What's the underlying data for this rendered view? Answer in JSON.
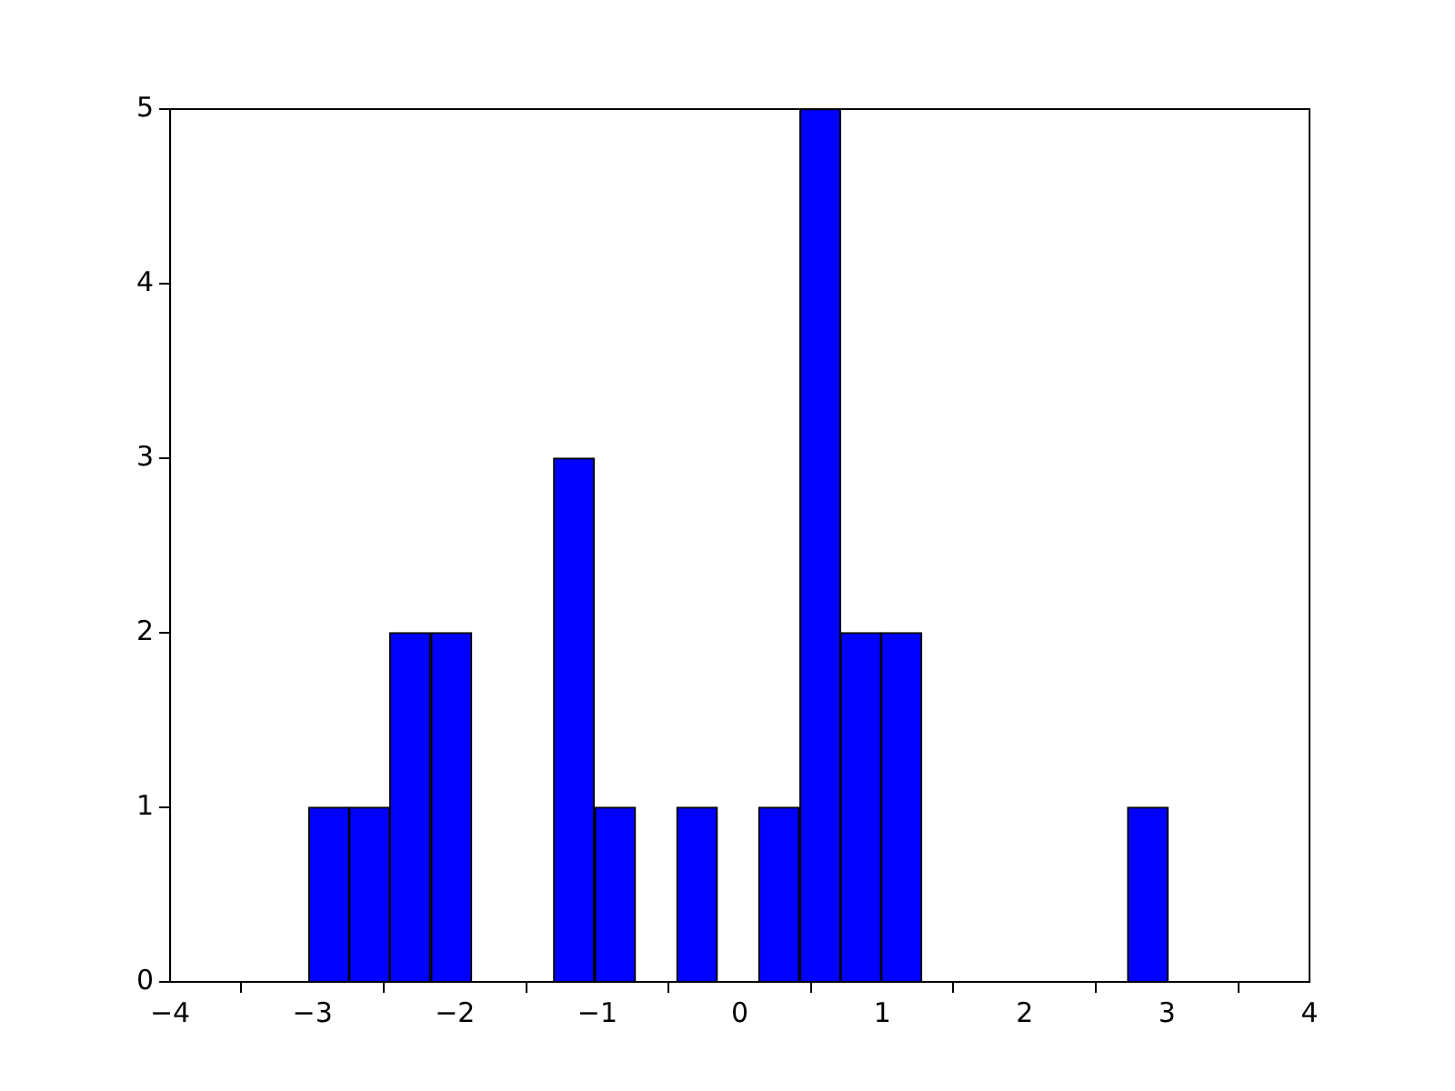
{
  "chart_data": {
    "type": "histogram",
    "bins": [
      -3.03,
      -2.74,
      -2.46,
      -2.17,
      -1.88,
      -1.59,
      -1.31,
      -1.02,
      -0.73,
      -0.44,
      -0.16,
      0.13,
      0.42,
      0.71,
      0.99,
      1.28,
      1.57,
      1.86,
      2.14,
      2.43,
      2.72,
      3.01
    ],
    "values": [
      1,
      1,
      2,
      2,
      0,
      0,
      3,
      1,
      0,
      1,
      0,
      1,
      5,
      2,
      2,
      0,
      0,
      0,
      0,
      0,
      1
    ],
    "color": "#0000ff",
    "xlim": [
      -4,
      4
    ],
    "xticks": [
      {
        "value": -4,
        "label": "−4"
      },
      {
        "value": -3,
        "label": "−3"
      },
      {
        "value": -2,
        "label": "−2"
      },
      {
        "value": -1,
        "label": "−1"
      },
      0,
      1,
      2,
      3,
      4
    ],
    "ylim": [
      0,
      5
    ],
    "yticks": [
      0,
      1,
      2,
      3,
      4,
      5
    ],
    "grid": false,
    "legend": false
  }
}
